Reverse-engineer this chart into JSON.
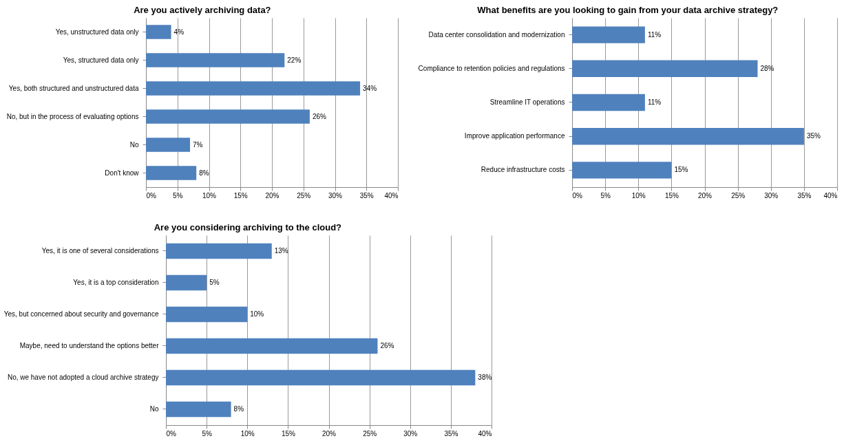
{
  "chart_data": [
    {
      "type": "bar",
      "orientation": "horizontal",
      "title": "Are you actively archiving data?",
      "categories": [
        "Yes, unstructured data only",
        "Yes, structured data only",
        "Yes, both structured and unstructured data",
        "No, but in the process of evaluating options",
        "No",
        "Don't know"
      ],
      "values": [
        4,
        22,
        34,
        26,
        7,
        8
      ],
      "value_labels": [
        "4%",
        "22%",
        "34%",
        "26%",
        "7%",
        "8%"
      ],
      "color": "#4f81bd",
      "xlim": [
        0,
        40
      ],
      "xticks": [
        {
          "value": 0,
          "label": "0%"
        },
        {
          "value": 5,
          "label": "5%"
        },
        {
          "value": 10,
          "label": "10%"
        },
        {
          "value": 15,
          "label": "15%"
        },
        {
          "value": 20,
          "label": "20%"
        },
        {
          "value": 25,
          "label": "25%"
        },
        {
          "value": 30,
          "label": "30%"
        },
        {
          "value": 35,
          "label": "35%"
        },
        {
          "value": 40,
          "label": "40%"
        }
      ],
      "grid": "x"
    },
    {
      "type": "bar",
      "orientation": "horizontal",
      "title": "What benefits are you looking to gain from your data archive strategy?",
      "categories": [
        "Data center consolidation and modernization",
        "Compliance to retention policies and regulations",
        "Streamline IT operations",
        "Improve application performance",
        "Reduce infrastructure costs"
      ],
      "values": [
        11,
        28,
        11,
        35,
        15
      ],
      "value_labels": [
        "11%",
        "28%",
        "11%",
        "35%",
        "15%"
      ],
      "color": "#4f81bd",
      "xlim": [
        0,
        40
      ],
      "xticks": [
        {
          "value": 0,
          "label": "0%"
        },
        {
          "value": 5,
          "label": "5%"
        },
        {
          "value": 10,
          "label": "10%"
        },
        {
          "value": 15,
          "label": "15%"
        },
        {
          "value": 20,
          "label": "20%"
        },
        {
          "value": 25,
          "label": "25%"
        },
        {
          "value": 30,
          "label": "30%"
        },
        {
          "value": 35,
          "label": "35%"
        },
        {
          "value": 40,
          "label": "40%"
        }
      ],
      "grid": "x"
    },
    {
      "type": "bar",
      "orientation": "horizontal",
      "title": "Are you considering archiving to the cloud?",
      "categories": [
        "Yes, it is one of several considerations",
        "Yes, it is a top consideration",
        "Yes, but concerned about security and governance",
        "Maybe, need to understand the options better",
        "No, we have not adopted a cloud archive strategy",
        "No"
      ],
      "values": [
        13,
        5,
        10,
        26,
        38,
        8
      ],
      "value_labels": [
        "13%",
        "5%",
        "10%",
        "26%",
        "38%",
        "8%"
      ],
      "color": "#4f81bd",
      "xlim": [
        0,
        40
      ],
      "xticks": [
        {
          "value": 0,
          "label": "0%"
        },
        {
          "value": 5,
          "label": "5%"
        },
        {
          "value": 10,
          "label": "10%"
        },
        {
          "value": 15,
          "label": "15%"
        },
        {
          "value": 20,
          "label": "20%"
        },
        {
          "value": 25,
          "label": "25%"
        },
        {
          "value": 30,
          "label": "30%"
        },
        {
          "value": 35,
          "label": "35%"
        },
        {
          "value": 40,
          "label": "40%"
        }
      ],
      "grid": "x"
    }
  ]
}
